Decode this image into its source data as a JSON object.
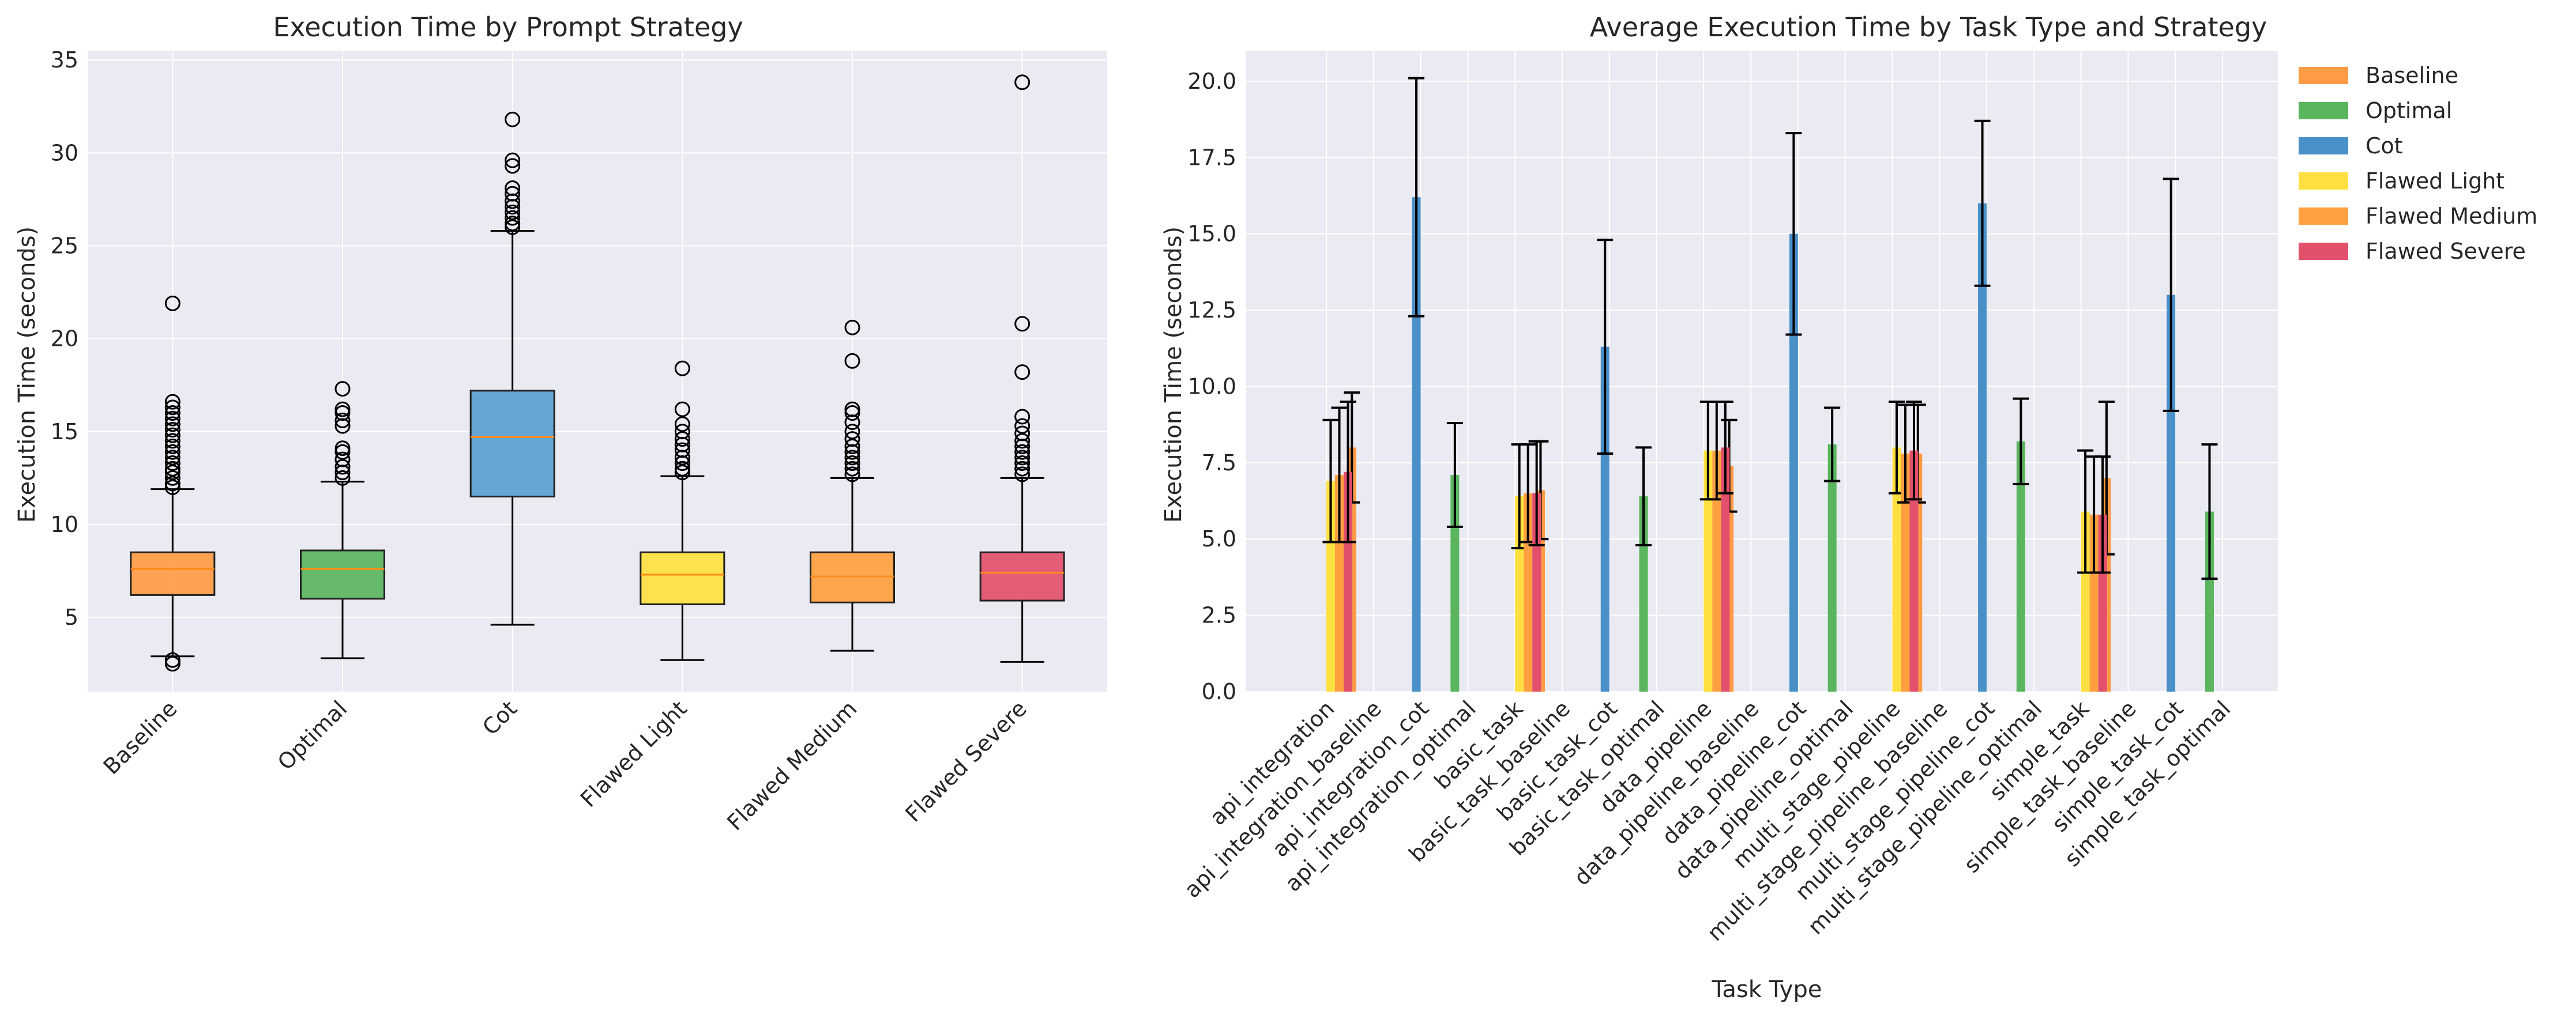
{
  "chart_data": [
    {
      "type": "boxplot",
      "title": "Execution Time by Prompt Strategy",
      "xlabel": "",
      "ylabel": "Execution Time (seconds)",
      "ylim": [
        1.0,
        35.5
      ],
      "yticks": [
        5,
        10,
        15,
        20,
        25,
        30,
        35
      ],
      "grid": true,
      "categories": [
        "Baseline",
        "Optimal",
        "Cot",
        "Flawed Light",
        "Flawed Medium",
        "Flawed Severe"
      ],
      "colors": [
        "#ff9a45",
        "#5ab55e",
        "#579ed0",
        "#ffe040",
        "#ffa040",
        "#e2506c"
      ],
      "median_color": "#ff8c1a",
      "boxes": [
        {
          "whisker_low": 2.9,
          "q1": 6.2,
          "median": 7.6,
          "q3": 8.5,
          "whisker_high": 11.9,
          "outliers": [
            2.5,
            2.7,
            12.0,
            12.2,
            12.5,
            12.8,
            13.0,
            13.3,
            13.6,
            13.9,
            14.2,
            14.5,
            14.8,
            15.1,
            15.4,
            15.7,
            16.0,
            16.3,
            16.6,
            21.9
          ]
        },
        {
          "whisker_low": 2.8,
          "q1": 6.0,
          "median": 7.6,
          "q3": 8.6,
          "whisker_high": 12.3,
          "outliers": [
            12.5,
            12.8,
            13.1,
            13.5,
            13.9,
            14.1,
            15.3,
            15.6,
            16.0,
            16.2,
            17.3
          ]
        },
        {
          "whisker_low": 4.6,
          "q1": 11.5,
          "median": 14.7,
          "q3": 17.2,
          "whisker_high": 25.8,
          "outliers": [
            26.0,
            26.2,
            26.5,
            26.8,
            27.1,
            27.4,
            27.8,
            28.1,
            29.3,
            29.6,
            31.8
          ]
        },
        {
          "whisker_low": 2.7,
          "q1": 5.7,
          "median": 7.3,
          "q3": 8.5,
          "whisker_high": 12.6,
          "outliers": [
            12.8,
            13.0,
            13.3,
            13.6,
            14.0,
            14.3,
            14.6,
            15.0,
            15.4,
            16.2,
            18.4
          ]
        },
        {
          "whisker_low": 3.2,
          "q1": 5.8,
          "median": 7.2,
          "q3": 8.5,
          "whisker_high": 12.5,
          "outliers": [
            12.7,
            13.0,
            13.3,
            13.6,
            13.9,
            14.2,
            14.6,
            15.0,
            15.5,
            16.0,
            16.2,
            18.8,
            20.6
          ]
        },
        {
          "whisker_low": 2.6,
          "q1": 5.9,
          "median": 7.4,
          "q3": 8.5,
          "whisker_high": 12.5,
          "outliers": [
            12.7,
            13.0,
            13.3,
            13.6,
            13.9,
            14.2,
            14.5,
            14.9,
            15.3,
            15.8,
            18.2,
            20.8,
            33.8
          ]
        }
      ]
    },
    {
      "type": "bar",
      "title": "Average Execution Time by Task Type and Strategy",
      "xlabel": "Task Type",
      "ylabel": "Execution Time (seconds)",
      "ylim": [
        0,
        21
      ],
      "yticks": [
        0.0,
        2.5,
        5.0,
        7.5,
        10.0,
        12.5,
        15.0,
        17.5,
        20.0
      ],
      "ytick_labels": [
        "0.0",
        "2.5",
        "5.0",
        "7.5",
        "10.0",
        "12.5",
        "15.0",
        "17.5",
        "20.0"
      ],
      "grid": true,
      "legend_position": "outside-top-right",
      "categories": [
        "api_integration",
        "api_integration_baseline",
        "api_integration_cot",
        "api_integration_optimal",
        "basic_task",
        "basic_task_baseline",
        "basic_task_cot",
        "basic_task_optimal",
        "data_pipeline",
        "data_pipeline_baseline",
        "data_pipeline_cot",
        "data_pipeline_optimal",
        "multi_stage_pipeline",
        "multi_stage_pipeline_baseline",
        "multi_stage_pipeline_cot",
        "multi_stage_pipeline_optimal",
        "simple_task",
        "simple_task_baseline",
        "simple_task_cot",
        "simple_task_optimal"
      ],
      "series": [
        {
          "name": "Baseline",
          "color": "#ff9a45",
          "values": [
            0,
            8.0,
            0,
            0,
            0,
            6.6,
            0,
            0,
            0,
            7.4,
            0,
            0,
            0,
            7.8,
            0,
            0,
            0,
            7.0,
            0,
            0
          ],
          "errors": [
            0,
            1.8,
            0,
            0,
            0,
            1.6,
            0,
            0,
            0,
            1.5,
            0,
            0,
            0,
            1.6,
            0,
            0,
            0,
            2.5,
            0,
            0
          ]
        },
        {
          "name": "Optimal",
          "color": "#5ab55e",
          "values": [
            0,
            0,
            0,
            7.1,
            0,
            0,
            0,
            6.4,
            0,
            0,
            0,
            8.1,
            0,
            0,
            0,
            8.2,
            0,
            0,
            0,
            5.9
          ],
          "errors": [
            0,
            0,
            0,
            1.7,
            0,
            0,
            0,
            1.6,
            0,
            0,
            0,
            1.2,
            0,
            0,
            0,
            1.4,
            0,
            0,
            0,
            2.2
          ]
        },
        {
          "name": "Cot",
          "color": "#4a90c8",
          "values": [
            0,
            0,
            16.2,
            0,
            0,
            0,
            11.3,
            0,
            0,
            0,
            15.0,
            0,
            0,
            0,
            16.0,
            0,
            0,
            0,
            13.0,
            0
          ],
          "errors": [
            0,
            0,
            3.9,
            0,
            0,
            0,
            3.5,
            0,
            0,
            0,
            3.3,
            0,
            0,
            0,
            2.7,
            0,
            0,
            0,
            3.8,
            0
          ]
        },
        {
          "name": "Flawed Light",
          "color": "#ffe040",
          "values": [
            6.9,
            0,
            0,
            0,
            6.4,
            0,
            0,
            0,
            7.9,
            0,
            0,
            0,
            8.0,
            0,
            0,
            0,
            5.9,
            0,
            0,
            0
          ],
          "errors": [
            2.0,
            0,
            0,
            0,
            1.7,
            0,
            0,
            0,
            1.6,
            0,
            0,
            0,
            1.5,
            0,
            0,
            0,
            2.0,
            0,
            0,
            0
          ]
        },
        {
          "name": "Flawed Medium",
          "color": "#ffa040",
          "values": [
            7.1,
            0,
            0,
            0,
            6.5,
            0,
            0,
            0,
            7.9,
            0,
            0,
            0,
            7.8,
            0,
            0,
            0,
            5.8,
            0,
            0,
            0
          ],
          "errors": [
            2.2,
            0,
            0,
            0,
            1.6,
            0,
            0,
            0,
            1.6,
            0,
            0,
            0,
            1.6,
            0,
            0,
            0,
            1.9,
            0,
            0,
            0
          ]
        },
        {
          "name": "Flawed Severe",
          "color": "#e2506c",
          "values": [
            7.2,
            0,
            0,
            0,
            6.5,
            0,
            0,
            0,
            8.0,
            0,
            0,
            0,
            7.9,
            0,
            0,
            0,
            5.8,
            0,
            0,
            0
          ],
          "errors": [
            2.3,
            0,
            0,
            0,
            1.7,
            0,
            0,
            0,
            1.5,
            0,
            0,
            0,
            1.6,
            0,
            0,
            0,
            1.9,
            0,
            0,
            0
          ]
        }
      ]
    }
  ]
}
